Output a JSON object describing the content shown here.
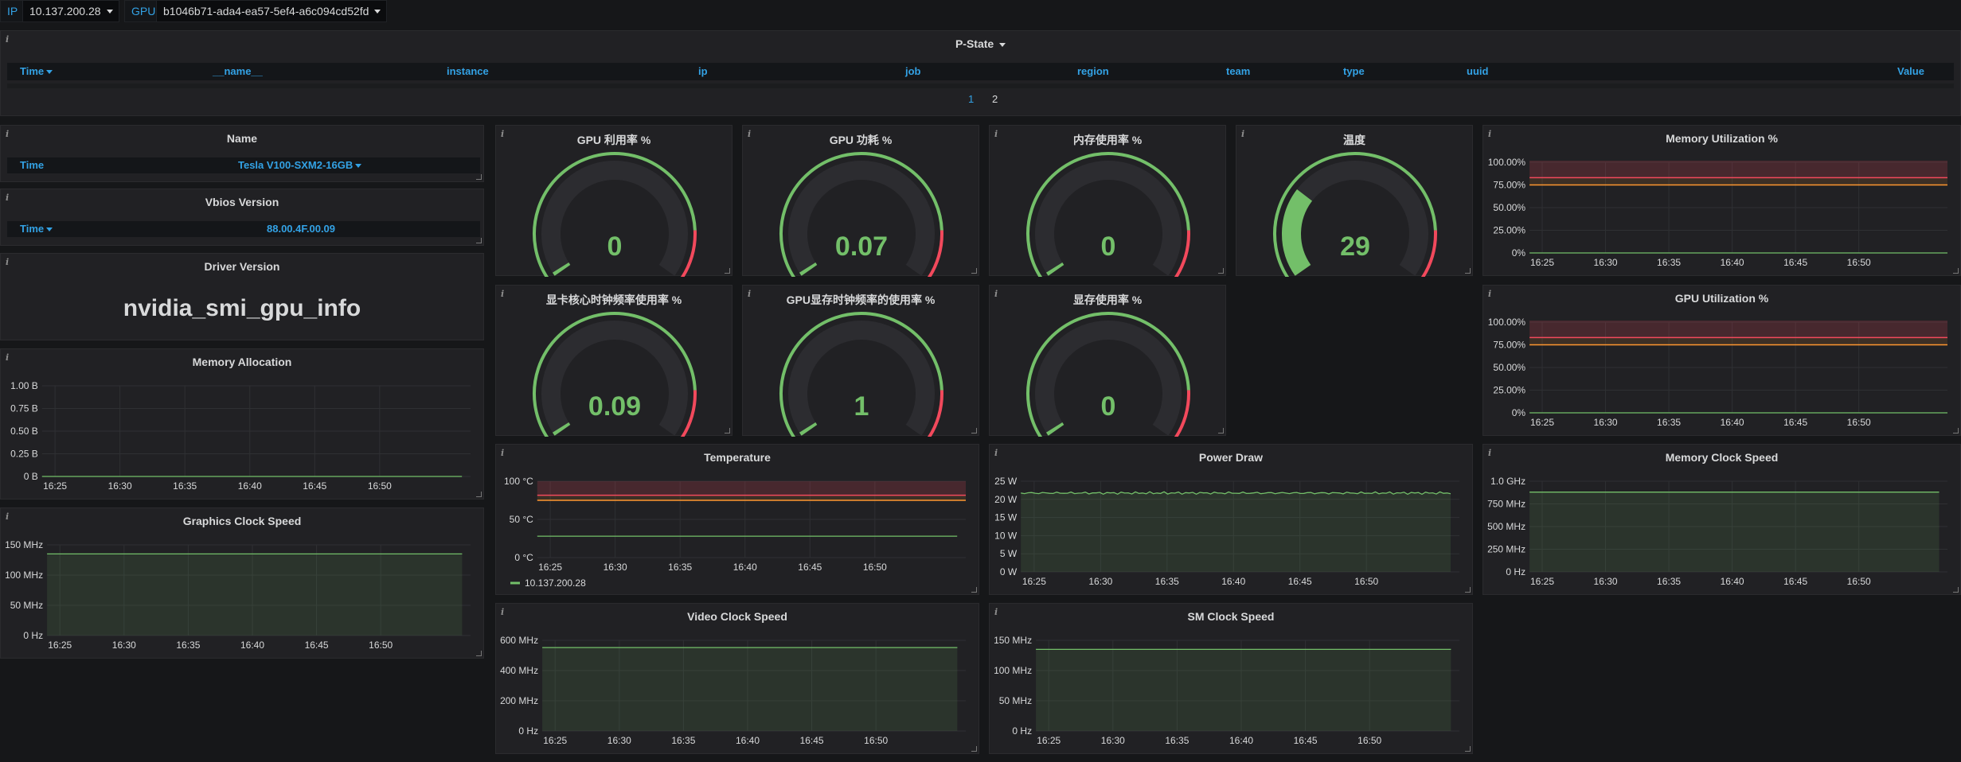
{
  "vars": {
    "ip_label": "IP",
    "ip_value": "10.137.200.28",
    "gpu_label": "GPU",
    "gpu_value": "b1046b71-ada4-ea57-5ef4-a6c094cd52fd"
  },
  "pstate": {
    "title": "P-State",
    "columns": [
      "Time",
      "__name__",
      "instance",
      "ip",
      "job",
      "region",
      "team",
      "type",
      "uuid",
      "Value"
    ],
    "pages": [
      "1",
      "2"
    ]
  },
  "name_panel": {
    "title": "Name",
    "key": "Time",
    "value": "Tesla V100-SXM2-16GB"
  },
  "vbios_panel": {
    "title": "Vbios Version",
    "key": "Time",
    "value": "88.00.4F.00.09"
  },
  "driver_panel": {
    "title": "Driver Version",
    "value": "nvidia_smi_gpu_info"
  },
  "gauges": [
    {
      "title": "GPU 利用率 %",
      "value": "0",
      "num": 0
    },
    {
      "title": "GPU 功耗 %",
      "value": "0.07",
      "num": 0.07
    },
    {
      "title": "内存使用率 %",
      "value": "0",
      "num": 0
    },
    {
      "title": "温度",
      "value": "29",
      "num": 29
    },
    {
      "title": "显卡核心时钟频率使用率 %",
      "value": "0.09",
      "num": 0.09
    },
    {
      "title": "GPU显存时钟频率的使用率 %",
      "value": "1",
      "num": 1
    },
    {
      "title": "显存使用率 %",
      "value": "0",
      "num": 0
    }
  ],
  "time_ticks": [
    "16:25",
    "16:30",
    "16:35",
    "16:40",
    "16:45",
    "16:50"
  ],
  "charts": {
    "mem_util": {
      "title": "Memory Utilization %",
      "yticks": [
        "100.00%",
        "75.00%",
        "50.00%",
        "25.00%",
        "0%"
      ],
      "level": 0,
      "thresholds": true
    },
    "gpu_util": {
      "title": "GPU Utilization %",
      "yticks": [
        "100.00%",
        "75.00%",
        "50.00%",
        "25.00%",
        "0%"
      ],
      "level": 0,
      "thresholds": true
    },
    "mem_alloc": {
      "title": "Memory Allocation",
      "yticks": [
        "1.00 B",
        "0.75 B",
        "0.50 B",
        "0.25 B",
        "0 B"
      ],
      "level": 0
    },
    "graphics_clock": {
      "title": "Graphics Clock Speed",
      "yticks": [
        "150 MHz",
        "100 MHz",
        "50 MHz",
        "0 Hz"
      ],
      "level": 0.9,
      "fill": true
    },
    "temperature": {
      "title": "Temperature",
      "yticks": [
        "100 °C",
        "50 °C",
        "0 °C"
      ],
      "level": 0.28,
      "thresholds": true,
      "legend": "10.137.200.28"
    },
    "power_draw": {
      "title": "Power Draw",
      "yticks": [
        "25 W",
        "20 W",
        "15 W",
        "10 W",
        "5 W",
        "0 W"
      ],
      "level": 0.87,
      "fill": true,
      "noisy": true
    },
    "mem_clock": {
      "title": "Memory Clock Speed",
      "yticks": [
        "1.0 GHz",
        "750 MHz",
        "500 MHz",
        "250 MHz",
        "0 Hz"
      ],
      "level": 0.88,
      "fill": true
    },
    "video_clock": {
      "title": "Video Clock Speed",
      "yticks": [
        "600 MHz",
        "400 MHz",
        "200 MHz",
        "0 Hz"
      ],
      "level": 0.92,
      "fill": true
    },
    "sm_clock": {
      "title": "SM Clock Speed",
      "yticks": [
        "150 MHz",
        "100 MHz",
        "50 MHz",
        "0 Hz"
      ],
      "level": 0.9,
      "fill": true
    }
  },
  "colors": {
    "accent": "#33a2e5",
    "green": "#73bf69",
    "red": "#f2495c",
    "orange": "#ff9830",
    "panel": "#212124"
  }
}
